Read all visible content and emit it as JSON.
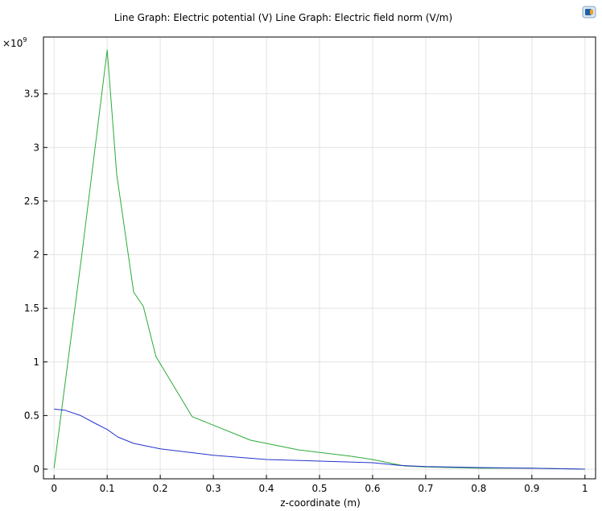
{
  "chart_data": {
    "type": "line",
    "title": "Line Graph: Electric potential (V)  Line Graph: Electric field norm (V/m)",
    "xlabel": "z-coordinate (m)",
    "ylabel": "",
    "y_multiplier": "×10",
    "y_exponent": "9",
    "xlim": [
      -0.02,
      1.02
    ],
    "ylim": [
      -0.09,
      4.03
    ],
    "grid": true,
    "x_ticks": [
      0,
      0.1,
      0.2,
      0.3,
      0.4,
      0.5,
      0.6,
      0.7,
      0.8,
      0.9,
      1
    ],
    "x_tick_labels": [
      "0",
      "0.1",
      "0.2",
      "0.3",
      "0.4",
      "0.5",
      "0.6",
      "0.7",
      "0.8",
      "0.9",
      "1"
    ],
    "y_ticks": [
      0,
      0.5,
      1,
      1.5,
      2,
      2.5,
      3,
      3.5
    ],
    "y_tick_labels": [
      "0",
      "0.5",
      "1",
      "1.5",
      "2",
      "2.5",
      "3",
      "3.5"
    ],
    "series": [
      {
        "color": "#2aaa3a",
        "x": [
          0,
          0.052,
          0.1,
          0.118,
          0.15,
          0.168,
          0.192,
          0.26,
          0.37,
          0.46,
          0.56,
          0.6,
          0.66,
          0.7,
          0.8,
          0.9,
          1
        ],
        "y": [
          0.01,
          1.99,
          3.91,
          2.75,
          1.65,
          1.52,
          1.05,
          0.49,
          0.27,
          0.18,
          0.12,
          0.09,
          0.03,
          0.02,
          0.01,
          0.01,
          0.0
        ]
      },
      {
        "color": "#2233cc",
        "x": [
          0,
          0.02,
          0.05,
          0.08,
          0.1,
          0.12,
          0.15,
          0.2,
          0.3,
          0.4,
          0.5,
          0.6,
          0.65,
          0.7,
          0.8,
          0.9,
          1
        ],
        "y": [
          0.56,
          0.55,
          0.5,
          0.42,
          0.37,
          0.3,
          0.24,
          0.19,
          0.13,
          0.09,
          0.075,
          0.06,
          0.035,
          0.025,
          0.015,
          0.008,
          0.0
        ]
      }
    ]
  },
  "logo_icon": "app-logo-icon"
}
